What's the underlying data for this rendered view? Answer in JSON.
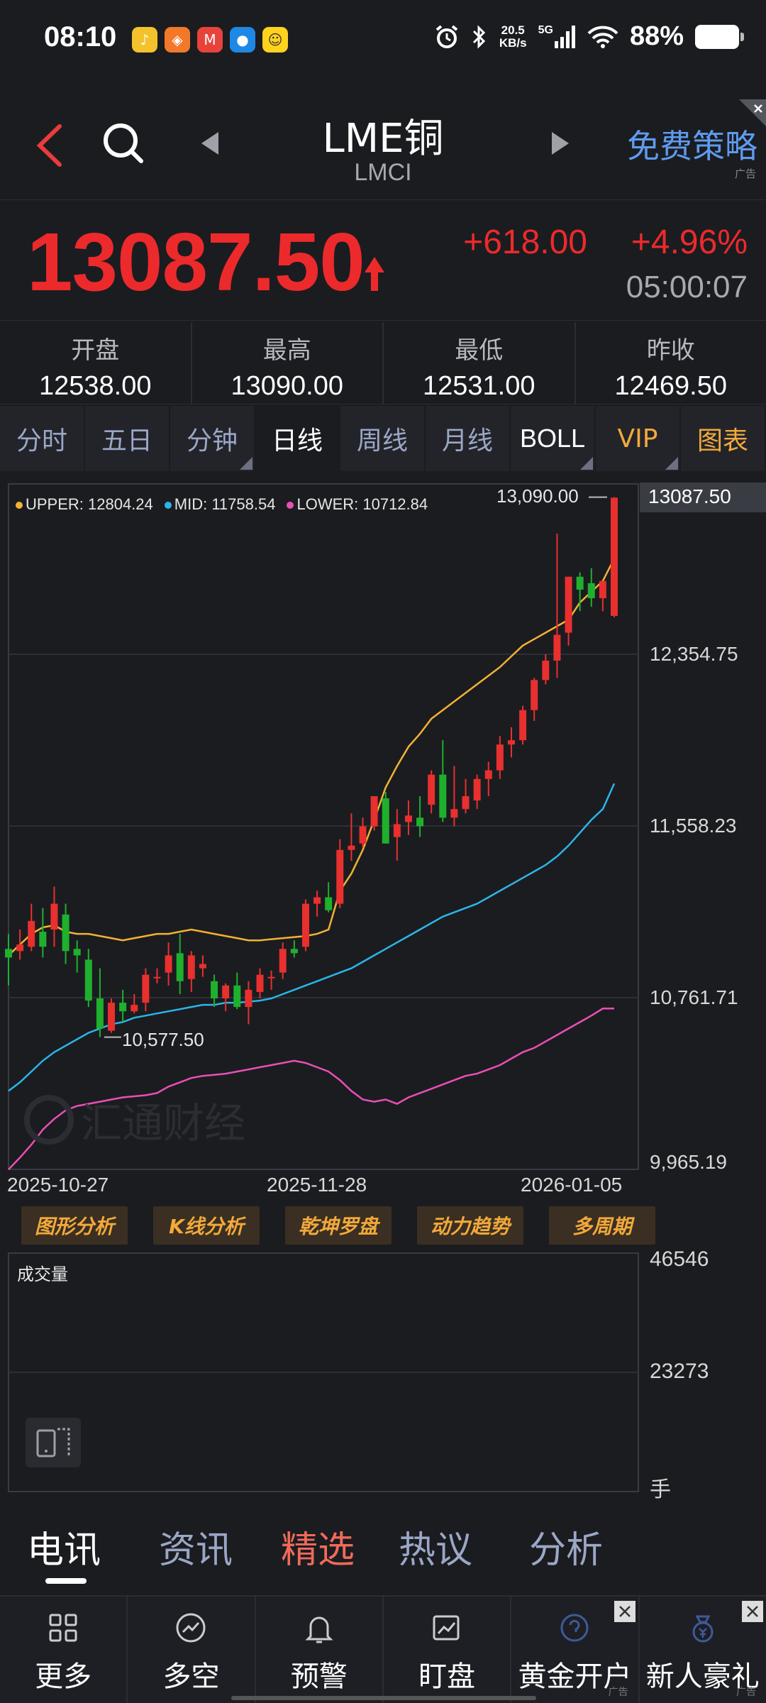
{
  "status_bar": {
    "time": "08:10",
    "net_speed_value": "20.5",
    "net_speed_unit": "KB/s",
    "signal": "5G",
    "battery": "88%",
    "app_icons": [
      "music-app-icon",
      "orange-app-icon",
      "maps-app-icon",
      "qq-app-icon",
      "yellow-app-icon"
    ],
    "status_icons": [
      "alarm-icon",
      "bluetooth-icon",
      "signal-icon",
      "wifi-icon",
      "battery-icon"
    ]
  },
  "header": {
    "title": "LME铜",
    "subtitle": "LMCI",
    "ad_text": "免费策略",
    "ad_tag": "广告"
  },
  "quote": {
    "price": "13087.50",
    "change": "+618.00",
    "change_pct": "+4.96%",
    "time": "05:00:07",
    "color_up": "#ec2a2c"
  },
  "ohlc": [
    {
      "label": "开盘",
      "value": "12538.00"
    },
    {
      "label": "最高",
      "value": "13090.00"
    },
    {
      "label": "最低",
      "value": "12531.00"
    },
    {
      "label": "昨收",
      "value": "12469.50"
    }
  ],
  "period_tabs": [
    {
      "label": "分时",
      "style": "normal"
    },
    {
      "label": "五日",
      "style": "normal"
    },
    {
      "label": "分钟",
      "style": "normal",
      "has_menu": true
    },
    {
      "label": "日线",
      "style": "active"
    },
    {
      "label": "周线",
      "style": "normal"
    },
    {
      "label": "月线",
      "style": "normal"
    },
    {
      "label": "BOLL",
      "style": "white",
      "has_menu": true
    },
    {
      "label": "VIP",
      "style": "gold",
      "has_menu": true
    },
    {
      "label": "图表",
      "style": "gold"
    }
  ],
  "chart": {
    "legend": {
      "upper": "UPPER: 12804.24",
      "mid": "MID: 11758.54",
      "lower": "LOWER: 10712.84",
      "upper_color": "#f2b233",
      "mid_color": "#2bb5e8",
      "lower_color": "#e94fb7"
    },
    "current_price_label": "13087.50",
    "y_ticks": [
      "12,354.75",
      "11,558.23",
      "10,761.71",
      "9,965.19"
    ],
    "x_ticks": [
      "2025-10-27",
      "2025-11-28",
      "2026-01-05"
    ],
    "high_label": "13,090.00",
    "low_label": "10,577.50",
    "watermark": "汇通财经",
    "up_color": "#e8302f",
    "down_color": "#1fb02e"
  },
  "chart_data": {
    "type": "candlestick",
    "ylim": [
      9965.19,
      13151.27
    ],
    "x_start": "2025-10-27",
    "x_end": "2026-01-05",
    "candles": [
      [
        10990,
        11060,
        10820,
        10950
      ],
      [
        10980,
        11080,
        10940,
        11010
      ],
      [
        11000,
        11200,
        10980,
        11120
      ],
      [
        11070,
        11180,
        10950,
        11000
      ],
      [
        11080,
        11280,
        11000,
        11200
      ],
      [
        11150,
        11200,
        10920,
        10980
      ],
      [
        10990,
        11030,
        10880,
        10960
      ],
      [
        10940,
        10990,
        10720,
        10750
      ],
      [
        10760,
        10900,
        10580,
        10620
      ],
      [
        10610,
        10760,
        10600,
        10740
      ],
      [
        10740,
        10800,
        10650,
        10700
      ],
      [
        10700,
        10780,
        10690,
        10730
      ],
      [
        10740,
        10900,
        10700,
        10870
      ],
      [
        10860,
        10900,
        10830,
        10860
      ],
      [
        10880,
        11020,
        10820,
        10960
      ],
      [
        10970,
        11060,
        10780,
        10840
      ],
      [
        10850,
        10980,
        10790,
        10960
      ],
      [
        10900,
        10960,
        10860,
        10920
      ],
      [
        10840,
        10870,
        10720,
        10760
      ],
      [
        10760,
        10830,
        10700,
        10820
      ],
      [
        10820,
        10880,
        10710,
        10720
      ],
      [
        10720,
        10840,
        10640,
        10800
      ],
      [
        10790,
        10900,
        10760,
        10870
      ],
      [
        10860,
        10890,
        10800,
        10860
      ],
      [
        10880,
        11020,
        10850,
        10990
      ],
      [
        10990,
        11030,
        10950,
        10970
      ],
      [
        11000,
        11220,
        10980,
        11200
      ],
      [
        11200,
        11260,
        11140,
        11230
      ],
      [
        11230,
        11300,
        11160,
        11170
      ],
      [
        11200,
        11500,
        11180,
        11450
      ],
      [
        11450,
        11620,
        11400,
        11470
      ],
      [
        11480,
        11600,
        11460,
        11560
      ],
      [
        11560,
        11700,
        11540,
        11700
      ],
      [
        11690,
        11720,
        11480,
        11480
      ],
      [
        11510,
        11640,
        11400,
        11570
      ],
      [
        11580,
        11680,
        11520,
        11610
      ],
      [
        11600,
        11700,
        11510,
        11560
      ],
      [
        11660,
        11820,
        11620,
        11800
      ],
      [
        11800,
        11960,
        11580,
        11600
      ],
      [
        11600,
        11840,
        11560,
        11640
      ],
      [
        11640,
        11780,
        11620,
        11700
      ],
      [
        11680,
        11800,
        11640,
        11780
      ],
      [
        11780,
        11860,
        11700,
        11820
      ],
      [
        11820,
        11980,
        11780,
        11940
      ],
      [
        11940,
        12020,
        11880,
        11960
      ],
      [
        11960,
        12120,
        11940,
        12100
      ],
      [
        12100,
        12250,
        12050,
        12240
      ],
      [
        12240,
        12360,
        12220,
        12330
      ],
      [
        12330,
        12920,
        12250,
        12450
      ],
      [
        12460,
        12720,
        12400,
        12720
      ],
      [
        12720,
        12740,
        12560,
        12660
      ],
      [
        12690,
        12760,
        12580,
        12620
      ],
      [
        12620,
        12700,
        12560,
        12700
      ],
      [
        12538,
        13090,
        12531,
        13087.5
      ]
    ],
    "upper": [
      10960,
      11010,
      11060,
      11090,
      11100,
      11070,
      11060,
      11060,
      11050,
      11040,
      11030,
      11040,
      11050,
      11060,
      11060,
      11070,
      11080,
      11070,
      11060,
      11050,
      11040,
      11030,
      11030,
      11035,
      11040,
      11045,
      11050,
      11060,
      11080,
      11260,
      11340,
      11450,
      11590,
      11740,
      11840,
      11930,
      11990,
      12060,
      12100,
      12140,
      12180,
      12220,
      12260,
      12300,
      12350,
      12400,
      12430,
      12460,
      12490,
      12520,
      12600,
      12650,
      12700,
      12804.24
    ],
    "mid": [
      10330,
      10370,
      10420,
      10470,
      10510,
      10540,
      10570,
      10600,
      10620,
      10640,
      10650,
      10670,
      10680,
      10690,
      10700,
      10710,
      10720,
      10730,
      10730,
      10740,
      10740,
      10745,
      10750,
      10760,
      10780,
      10800,
      10820,
      10840,
      10860,
      10880,
      10900,
      10930,
      10960,
      10990,
      11020,
      11050,
      11080,
      11110,
      11140,
      11160,
      11180,
      11200,
      11230,
      11260,
      11290,
      11320,
      11350,
      11380,
      11420,
      11470,
      11530,
      11590,
      11640,
      11758.54
    ],
    "lower": [
      9965,
      10020,
      10080,
      10150,
      10200,
      10240,
      10260,
      10270,
      10280,
      10290,
      10300,
      10305,
      10310,
      10320,
      10350,
      10370,
      10390,
      10400,
      10405,
      10410,
      10420,
      10430,
      10440,
      10450,
      10460,
      10470,
      10460,
      10440,
      10420,
      10380,
      10330,
      10290,
      10280,
      10290,
      10270,
      10300,
      10320,
      10340,
      10360,
      10380,
      10400,
      10410,
      10430,
      10450,
      10480,
      10510,
      10530,
      10560,
      10590,
      10620,
      10650,
      10680,
      10712.84,
      10712.84
    ]
  },
  "analysis_tools": [
    "图形分析",
    "K线分析",
    "乾坤罗盘",
    "动力趋势",
    "多周期"
  ],
  "volume": {
    "label": "成交量",
    "y_ticks": [
      "46546",
      "23273",
      "手"
    ]
  },
  "news_tabs": [
    {
      "label": "电讯",
      "style": "active"
    },
    {
      "label": "资讯",
      "style": "normal"
    },
    {
      "label": "精选",
      "style": "red"
    },
    {
      "label": "热议",
      "style": "normal"
    },
    {
      "label": "分析",
      "style": "normal"
    }
  ],
  "bottom_nav": [
    {
      "label": "更多",
      "icon": "grid-icon"
    },
    {
      "label": "多空",
      "icon": "trend-icon"
    },
    {
      "label": "预警",
      "icon": "bell-icon"
    },
    {
      "label": "盯盘",
      "icon": "chart-icon"
    },
    {
      "label": "黄金开户",
      "icon": "gold-account-icon",
      "ad": true
    },
    {
      "label": "新人豪礼",
      "icon": "gift-icon",
      "ad": true
    }
  ],
  "bottom_ad_tag": "广告"
}
